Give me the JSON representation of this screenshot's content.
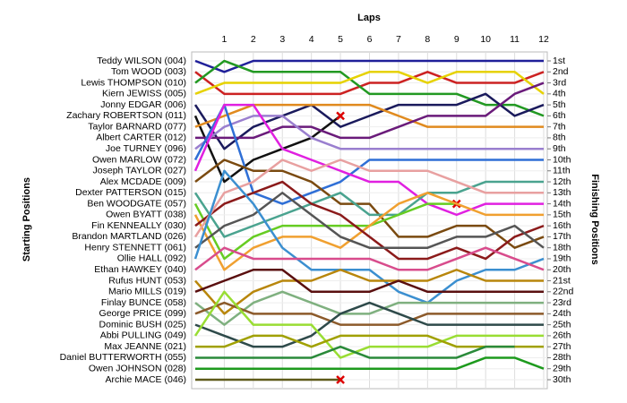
{
  "chart_data": {
    "type": "lap-chart",
    "x_label": "Laps",
    "y_label": "Starting Positions",
    "y2_label": "Finishing Positions",
    "x": [
      0,
      1,
      2,
      3,
      4,
      5,
      6,
      7,
      8,
      9,
      10,
      11,
      12
    ],
    "xlim": [
      0,
      12
    ],
    "xticks": [
      1,
      2,
      3,
      4,
      5,
      6,
      7,
      8,
      9,
      10,
      11,
      12
    ],
    "ylim": [
      1,
      30
    ],
    "grid": true,
    "yticks": [
      {
        "value": 1,
        "label": "1st"
      },
      {
        "value": 2,
        "label": "2nd"
      },
      {
        "value": 3,
        "label": "3rd"
      },
      {
        "value": 4,
        "label": "4th"
      },
      {
        "value": 5,
        "label": "5th"
      },
      {
        "value": 6,
        "label": "6th"
      },
      {
        "value": 7,
        "label": "7th"
      },
      {
        "value": 8,
        "label": "8th"
      },
      {
        "value": 9,
        "label": "9th"
      },
      {
        "value": 10,
        "label": "10th"
      },
      {
        "value": 11,
        "label": "11th"
      },
      {
        "value": 12,
        "label": "12th"
      },
      {
        "value": 13,
        "label": "13th"
      },
      {
        "value": 14,
        "label": "14th"
      },
      {
        "value": 15,
        "label": "15th"
      },
      {
        "value": 16,
        "label": "16th"
      },
      {
        "value": 17,
        "label": "17th"
      },
      {
        "value": 18,
        "label": "18th"
      },
      {
        "value": 19,
        "label": "19th"
      },
      {
        "value": 20,
        "label": "20th"
      },
      {
        "value": 21,
        "label": "21st"
      },
      {
        "value": 22,
        "label": "22nd"
      },
      {
        "value": 23,
        "label": "23rd"
      },
      {
        "value": 24,
        "label": "24th"
      },
      {
        "value": 25,
        "label": "25th"
      },
      {
        "value": 26,
        "label": "26th"
      },
      {
        "value": 27,
        "label": "27th"
      },
      {
        "value": 28,
        "label": "28th"
      },
      {
        "value": 29,
        "label": "29th"
      },
      {
        "value": 30,
        "label": "30th"
      }
    ],
    "series": [
      {
        "name": "Teddy WILSON (004)",
        "color": "#1f1f99",
        "values": [
          1,
          2,
          1,
          1,
          1,
          1,
          1,
          1,
          1,
          1,
          1,
          1,
          1
        ]
      },
      {
        "name": "Tom WOOD (003)",
        "color": "#cc2222",
        "values": [
          2,
          4,
          4,
          4,
          4,
          4,
          3,
          3,
          2,
          3,
          3,
          3,
          2
        ]
      },
      {
        "name": "Lewis THOMPSON (010)",
        "color": "#229922",
        "values": [
          3,
          1,
          2,
          2,
          2,
          2,
          4,
          4,
          4,
          4,
          5,
          5,
          6
        ]
      },
      {
        "name": "Kiern JEWISS (005)",
        "color": "#e6d200",
        "values": [
          4,
          3,
          3,
          3,
          3,
          3,
          2,
          2,
          3,
          2,
          2,
          2,
          4
        ]
      },
      {
        "name": "Jonny EDGAR (006)",
        "color": "#1a1a5c",
        "values": [
          5,
          9,
          7,
          6,
          5,
          7,
          6,
          5,
          5,
          5,
          4,
          6,
          5
        ]
      },
      {
        "name": "Zachary ROBERTSON (011)",
        "color": "#111111",
        "values": [
          6,
          12,
          10,
          9,
          8,
          6,
          null,
          null,
          null,
          null,
          null,
          null,
          null
        ],
        "end_marker": "x"
      },
      {
        "name": "Taylor BARNARD (077)",
        "color": "#e08a1e",
        "values": [
          7,
          6,
          5,
          5,
          5,
          5,
          5,
          6,
          7,
          7,
          7,
          7,
          7
        ]
      },
      {
        "name": "Albert CARTER (012)",
        "color": "#6a1b7a",
        "values": [
          8,
          8,
          8,
          7,
          7,
          8,
          8,
          7,
          6,
          6,
          6,
          4,
          3
        ]
      },
      {
        "name": "Joe TURNEY (096)",
        "color": "#9a7fcf",
        "values": [
          9,
          7,
          6,
          6,
          8,
          9,
          9,
          9,
          9,
          9,
          9,
          9,
          9
        ]
      },
      {
        "name": "Owen MARLOW (072)",
        "color": "#2f6fd6",
        "values": [
          10,
          5,
          13,
          14,
          13,
          12,
          10,
          10,
          10,
          10,
          10,
          10,
          10
        ]
      },
      {
        "name": "Joseph TAYLOR (027)",
        "color": "#e020e0",
        "values": [
          11,
          5,
          5,
          9,
          10,
          11,
          12,
          12,
          14,
          15,
          14,
          14,
          14
        ]
      },
      {
        "name": "Alex MCDADE (009)",
        "color": "#7a4a10",
        "values": [
          12,
          10,
          11,
          11,
          12,
          14,
          14,
          17,
          17,
          16,
          16,
          18,
          17
        ]
      },
      {
        "name": "Dexter PATTERSON (015)",
        "color": "#4aa38f",
        "values": [
          13,
          17,
          16,
          15,
          14,
          13,
          15,
          15,
          13,
          13,
          12,
          12,
          12
        ]
      },
      {
        "name": "Ben WOODGATE (057)",
        "color": "#66cc22",
        "values": [
          14,
          19,
          17,
          16,
          16,
          16,
          16,
          15,
          14,
          14,
          null,
          null,
          null
        ],
        "end_marker": "x"
      },
      {
        "name": "Owen BYATT (038)",
        "color": "#f0a030",
        "values": [
          15,
          20,
          18,
          17,
          17,
          18,
          16,
          14,
          13,
          14,
          15,
          15,
          15
        ]
      },
      {
        "name": "Fin KENNEALLY (030)",
        "color": "#8b1a1a",
        "values": [
          16,
          14,
          13,
          12,
          14,
          15,
          17,
          19,
          19,
          18,
          19,
          17,
          16
        ]
      },
      {
        "name": "Brandon MARTLAND (026)",
        "color": "#e8a0a0",
        "values": [
          17,
          13,
          12,
          10,
          11,
          10,
          11,
          11,
          11,
          12,
          13,
          13,
          13
        ]
      },
      {
        "name": "Henry STENNETT (061)",
        "color": "#555555",
        "values": [
          18,
          16,
          15,
          13,
          15,
          17,
          18,
          18,
          18,
          17,
          17,
          16,
          18
        ]
      },
      {
        "name": "Ollie HALL (092)",
        "color": "#3b8fd0",
        "values": [
          19,
          11,
          14,
          18,
          20,
          20,
          20,
          22,
          23,
          21,
          20,
          20,
          19
        ]
      },
      {
        "name": "Ethan HAWKEY (040)",
        "color": "#d84c8c",
        "values": [
          20,
          18,
          19,
          19,
          19,
          19,
          19,
          20,
          20,
          19,
          18,
          19,
          20
        ]
      },
      {
        "name": "Rufus HUNT (053)",
        "color": "#b8860b",
        "values": [
          21,
          24,
          22,
          21,
          21,
          20,
          21,
          21,
          21,
          20,
          21,
          21,
          21
        ]
      },
      {
        "name": "Mario MILLS (019)",
        "color": "#5a0f0f",
        "values": [
          22,
          21,
          20,
          20,
          22,
          22,
          22,
          21,
          22,
          22,
          22,
          22,
          22
        ]
      },
      {
        "name": "Finlay BUNCE (058)",
        "color": "#7fb07f",
        "values": [
          23,
          25,
          23,
          22,
          23,
          24,
          24,
          23,
          23,
          23,
          23,
          23,
          23
        ]
      },
      {
        "name": "George PRICE (099)",
        "color": "#8c5a2a",
        "values": [
          24,
          23,
          24,
          24,
          24,
          25,
          25,
          25,
          24,
          24,
          24,
          24,
          24
        ]
      },
      {
        "name": "Dominic BUSH (025)",
        "color": "#2e4a4a",
        "values": [
          25,
          26,
          27,
          27,
          26,
          24,
          23,
          24,
          25,
          25,
          25,
          25,
          25
        ]
      },
      {
        "name": "Abbi PULLING (049)",
        "color": "#99dd33",
        "values": [
          26,
          22,
          25,
          25,
          25,
          28,
          27,
          27,
          27,
          26,
          26,
          26,
          26
        ]
      },
      {
        "name": "Max JEANNE (021)",
        "color": "#a0a000",
        "values": [
          27,
          27,
          26,
          26,
          27,
          26,
          26,
          26,
          26,
          27,
          27,
          27,
          27
        ]
      },
      {
        "name": "Daniel BUTTERWORTH (055)",
        "color": "#2a8a3a",
        "values": [
          28,
          28,
          28,
          28,
          28,
          27,
          28,
          28,
          28,
          28,
          27,
          27,
          null
        ]
      },
      {
        "name": "Owen JOHNSON (028)",
        "color": "#1d9a1d",
        "values": [
          29,
          29,
          29,
          29,
          29,
          29,
          29,
          29,
          29,
          29,
          28,
          28,
          29
        ]
      },
      {
        "name": "Archie MACE (046)",
        "color": "#5e5a1a",
        "values": [
          30,
          30,
          30,
          30,
          30,
          30,
          null,
          null,
          null,
          null,
          null,
          null,
          null
        ],
        "end_marker": "x"
      }
    ]
  }
}
